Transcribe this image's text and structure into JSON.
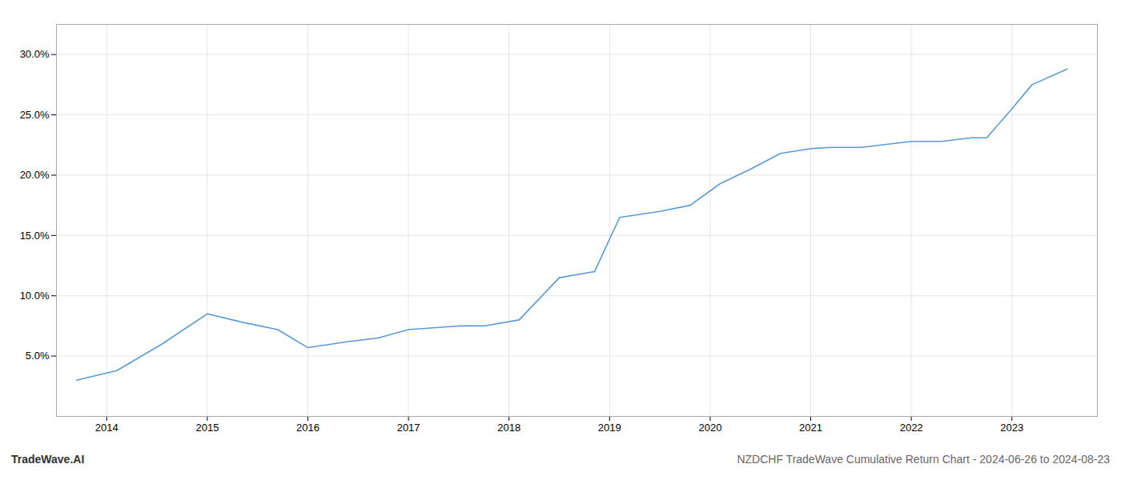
{
  "chart_data": {
    "type": "line",
    "title": "NZDCHF TradeWave Cumulative Return Chart - 2024-06-26 to 2024-08-23",
    "annotations": [
      "TradeWave.AI"
    ],
    "x": [
      2013.7,
      2014.1,
      2014.55,
      2015.0,
      2015.35,
      2015.7,
      2016.0,
      2016.4,
      2016.7,
      2017.0,
      2017.5,
      2017.75,
      2018.1,
      2018.5,
      2018.85,
      2019.1,
      2019.5,
      2019.8,
      2020.1,
      2020.4,
      2020.7,
      2021.0,
      2021.2,
      2021.5,
      2021.7,
      2022.0,
      2022.3,
      2022.6,
      2022.75,
      2023.0,
      2023.2,
      2023.55
    ],
    "values": [
      3.0,
      3.8,
      6.0,
      8.5,
      7.8,
      7.2,
      5.7,
      6.2,
      6.5,
      7.2,
      7.5,
      7.5,
      8.0,
      11.5,
      12.0,
      16.5,
      17.0,
      17.5,
      19.3,
      20.5,
      21.8,
      22.2,
      22.3,
      22.3,
      22.5,
      22.8,
      22.8,
      23.1,
      23.1,
      25.5,
      27.5,
      28.8
    ],
    "color": "#5b9bd5",
    "xlim": [
      2013.5,
      2023.85
    ],
    "ylim": [
      0.0,
      32.5
    ],
    "xticks": [
      2014,
      2015,
      2016,
      2017,
      2018,
      2019,
      2020,
      2021,
      2022,
      2023
    ],
    "yticks": [
      {
        "value": 5.0,
        "label": "5.0%"
      },
      {
        "value": 10.0,
        "label": "10.0%"
      },
      {
        "value": 15.0,
        "label": "15.0%"
      },
      {
        "value": 20.0,
        "label": "20.0%"
      },
      {
        "value": 25.0,
        "label": "25.0%"
      },
      {
        "value": 30.0,
        "label": "30.0%"
      }
    ],
    "grid": true
  }
}
